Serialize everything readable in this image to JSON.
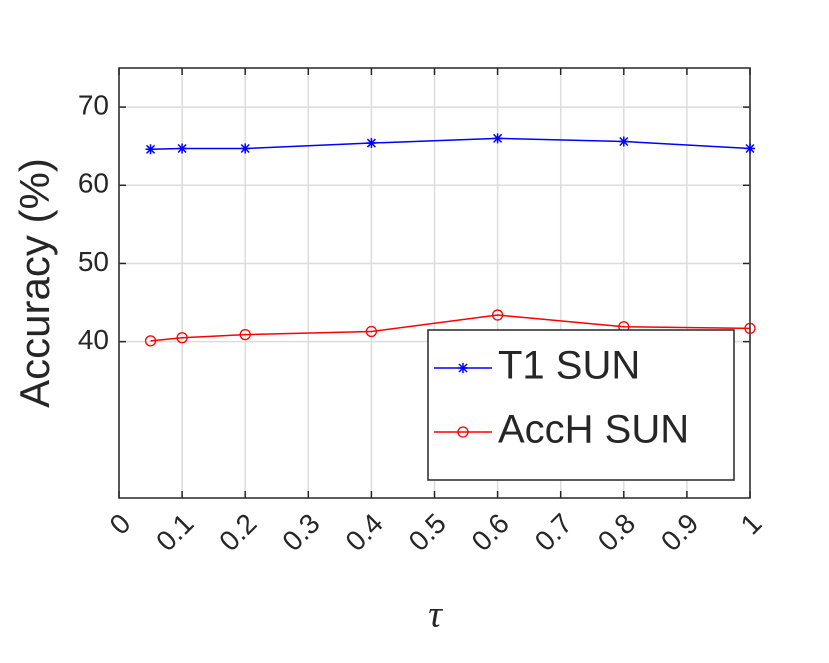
{
  "chart_data": {
    "type": "line",
    "x_label": "τ",
    "y_label": "Accuracy (%)",
    "x": [
      0.05,
      0.1,
      0.2,
      0.4,
      0.6,
      0.8,
      1.0
    ],
    "series": [
      {
        "name": "T1 SUN",
        "color": "#0000ff",
        "marker": "asterisk",
        "values": [
          64.6,
          64.7,
          64.7,
          65.4,
          66.0,
          65.6,
          64.7
        ]
      },
      {
        "name": "AccH SUN",
        "color": "#ff0000",
        "marker": "circle",
        "values": [
          40.1,
          40.5,
          40.9,
          41.3,
          43.4,
          41.9,
          41.7
        ]
      }
    ],
    "xlim": [
      0,
      1
    ],
    "xticks": [
      0,
      0.1,
      0.2,
      0.3,
      0.4,
      0.5,
      0.6,
      0.7,
      0.8,
      0.9,
      1
    ],
    "ylim": [
      20,
      75
    ],
    "yticks": [
      40,
      50,
      60,
      70
    ],
    "grid": true,
    "legend": "lower right"
  }
}
